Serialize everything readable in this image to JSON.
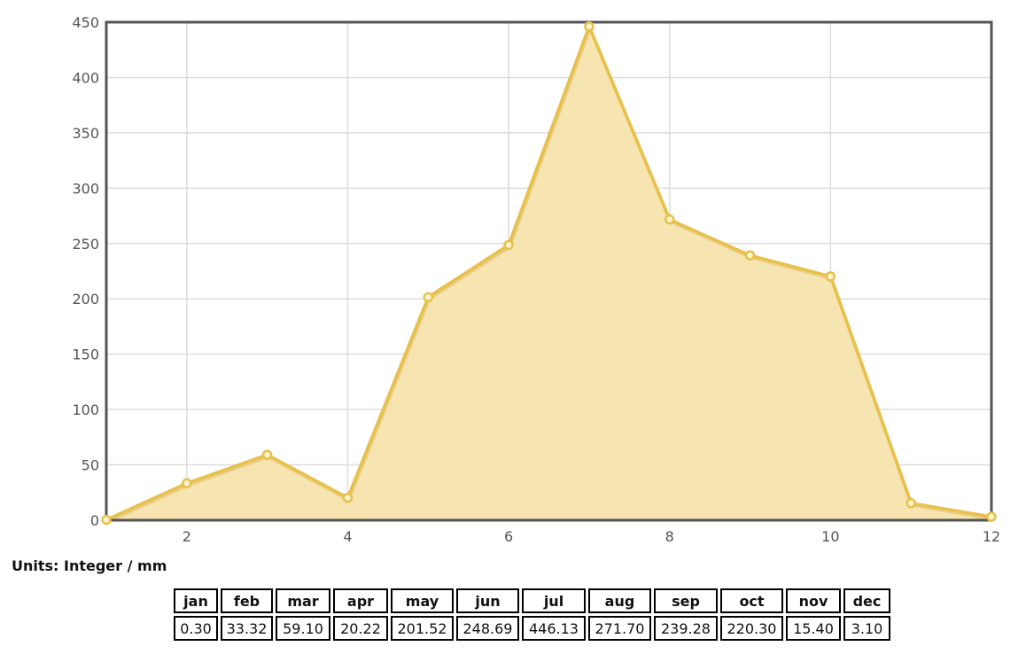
{
  "chart_data": {
    "type": "area",
    "x": [
      1,
      2,
      3,
      4,
      5,
      6,
      7,
      8,
      9,
      10,
      11,
      12
    ],
    "values": [
      0.3,
      33.32,
      59.1,
      20.22,
      201.52,
      248.69,
      446.13,
      271.7,
      239.28,
      220.3,
      15.4,
      3.1
    ],
    "xlim": [
      1,
      12
    ],
    "ylim": [
      0,
      450
    ],
    "x_ticks": [
      2,
      4,
      6,
      8,
      10,
      12
    ],
    "y_ticks": [
      0,
      50,
      100,
      150,
      200,
      250,
      300,
      350,
      400,
      450
    ],
    "grid": true,
    "colors": {
      "line": "#e8c04a",
      "fill": "#f6e3ad",
      "marker_fill": "#fff6cc",
      "axis": "#555555",
      "grid": "#dddddd"
    }
  },
  "units_label": "Units: Integer / mm",
  "table": {
    "headers": [
      "jan",
      "feb",
      "mar",
      "apr",
      "may",
      "jun",
      "jul",
      "aug",
      "sep",
      "oct",
      "nov",
      "dec"
    ],
    "values": [
      "0.30",
      "33.32",
      "59.10",
      "20.22",
      "201.52",
      "248.69",
      "446.13",
      "271.70",
      "239.28",
      "220.30",
      "15.40",
      "3.10"
    ]
  }
}
